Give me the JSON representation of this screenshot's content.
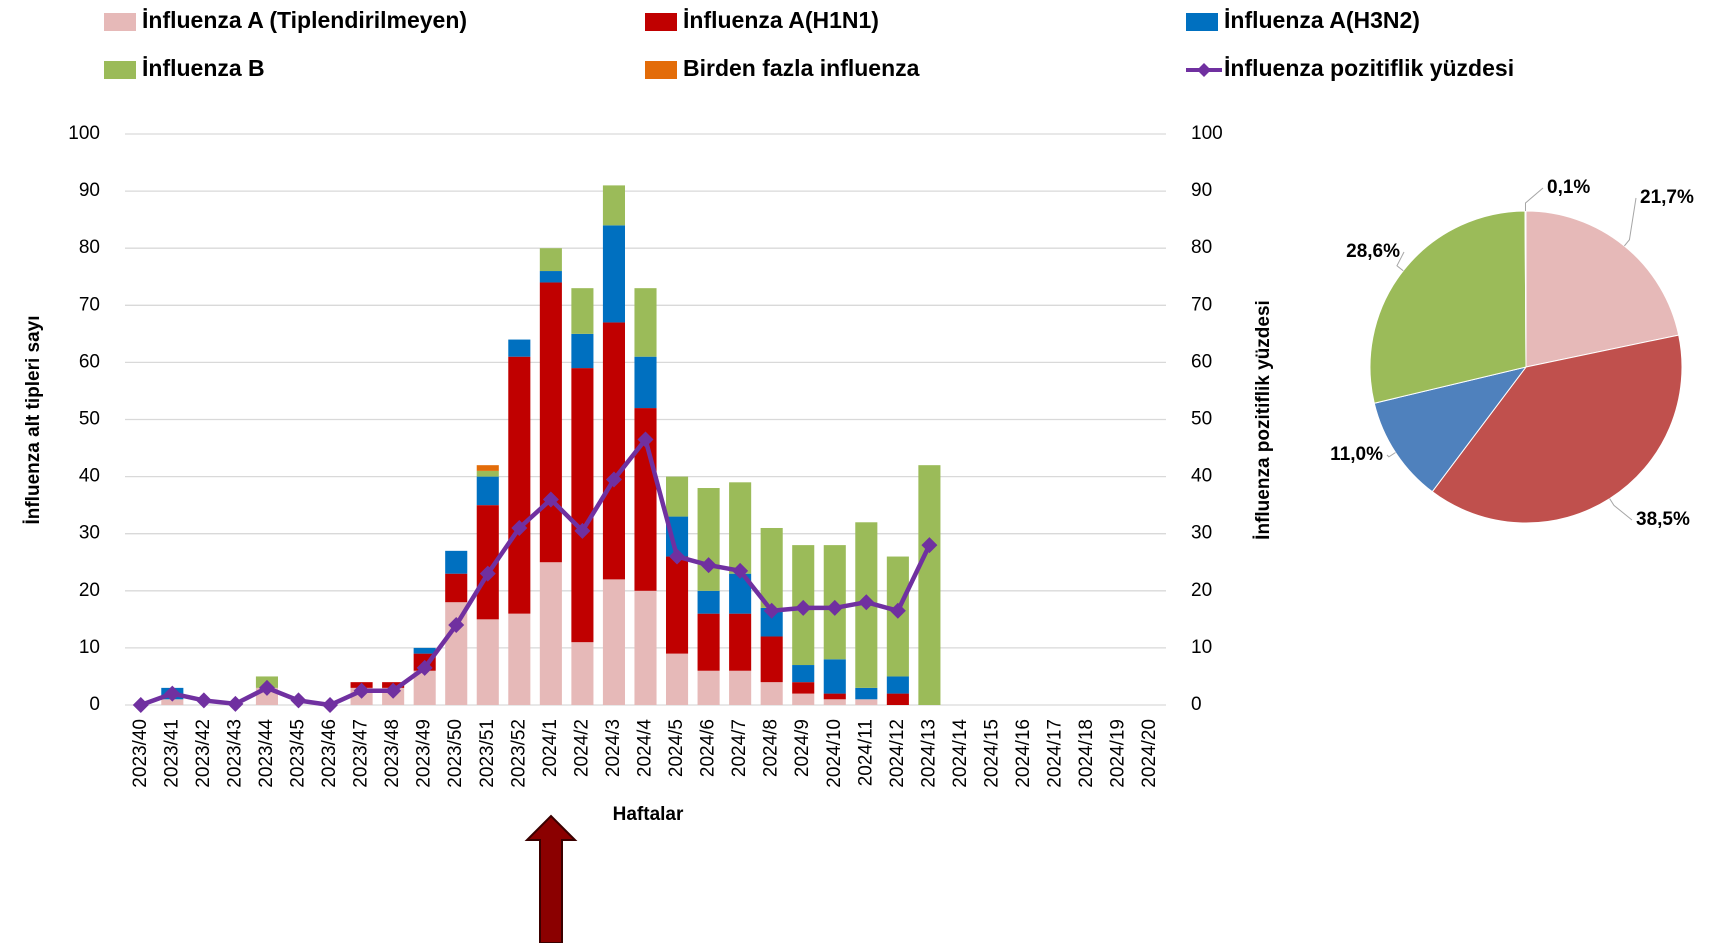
{
  "chart_data": [
    {
      "type": "bar",
      "stacked": true,
      "x_label": "Haftalar",
      "y_label": "İnfluenza alt tipleri sayı",
      "y2_label": "İnfluenza pozitiflik yüzdesi",
      "categories": [
        "2023/40",
        "2023/41",
        "2023/42",
        "2023/43",
        "2023/44",
        "2023/45",
        "2023/46",
        "2023/47",
        "2023/48",
        "2023/49",
        "2023/50",
        "2023/51",
        "2023/52",
        "2024/1",
        "2024/2",
        "2024/3",
        "2024/4",
        "2024/5",
        "2024/6",
        "2024/7",
        "2024/8",
        "2024/9",
        "2024/10",
        "2024/11",
        "2024/12",
        "2024/13",
        "2024/14",
        "2024/15",
        "2024/16",
        "2024/17",
        "2024/18",
        "2024/19",
        "2024/20"
      ],
      "ylim": [
        0,
        100
      ],
      "yticks": [
        0,
        10,
        20,
        30,
        40,
        50,
        60,
        70,
        80,
        90,
        100
      ],
      "y2lim": [
        0,
        100
      ],
      "y2ticks": [
        0,
        10,
        20,
        30,
        40,
        50,
        60,
        70,
        80,
        90,
        100
      ],
      "grid": true,
      "legend": "top",
      "series": [
        {
          "name": "İnfluenza A (Tiplendirilmeyen)",
          "color": "#e6b9b8",
          "values": [
            0,
            1,
            0,
            0,
            3,
            0,
            0,
            3,
            3,
            6,
            18,
            15,
            16,
            25,
            11,
            22,
            20,
            9,
            6,
            6,
            4,
            2,
            1,
            1,
            0,
            0,
            null,
            null,
            null,
            null,
            null,
            null,
            null
          ]
        },
        {
          "name": "İnfluenza A(H1N1)",
          "color": "#c00000",
          "values": [
            0,
            0,
            0,
            0,
            0,
            0,
            0,
            1,
            1,
            3,
            5,
            20,
            45,
            49,
            48,
            45,
            32,
            17,
            10,
            10,
            8,
            2,
            1,
            0,
            2,
            0,
            null,
            null,
            null,
            null,
            null,
            null,
            null
          ]
        },
        {
          "name": "İnfluenza A(H3N2)",
          "color": "#0070c0",
          "values": [
            0,
            2,
            0,
            0,
            0,
            0,
            0,
            0,
            0,
            1,
            4,
            5,
            3,
            2,
            6,
            17,
            9,
            7,
            4,
            7,
            5,
            3,
            6,
            2,
            3,
            0,
            null,
            null,
            null,
            null,
            null,
            null,
            null
          ]
        },
        {
          "name": "İnfluenza B",
          "color": "#9bbb59",
          "values": [
            0,
            0,
            0,
            0,
            2,
            0,
            0,
            0,
            0,
            0,
            0,
            1,
            0,
            4,
            8,
            7,
            12,
            7,
            18,
            16,
            14,
            21,
            20,
            29,
            21,
            42,
            null,
            null,
            null,
            null,
            null,
            null,
            null
          ]
        },
        {
          "name": "Birden fazla influenza",
          "color": "#e36c09",
          "values": [
            0,
            0,
            0,
            0,
            0,
            0,
            0,
            0,
            0,
            0,
            0,
            1,
            0,
            0,
            0,
            0,
            0,
            0,
            0,
            0,
            0,
            0,
            0,
            0,
            0,
            0,
            null,
            null,
            null,
            null,
            null,
            null,
            null
          ]
        },
        {
          "name": "İnfluenza pozitiflik yüzdesi",
          "color": "#7030a0",
          "type": "line",
          "axis": "y2",
          "values": [
            0,
            2,
            0.8,
            0.2,
            3,
            0.8,
            0,
            2.5,
            2.5,
            6.5,
            14,
            23,
            31,
            36,
            30.5,
            39.5,
            46.5,
            26,
            24.5,
            23.5,
            16.5,
            17,
            17,
            18,
            16.5,
            28,
            null,
            null,
            null,
            null,
            null,
            null,
            null
          ]
        }
      ]
    },
    {
      "type": "pie",
      "values": [
        21.7,
        38.5,
        11.0,
        28.6,
        0.1
      ],
      "value_labels": [
        "21,7%",
        "38,5%",
        "11,0%",
        "28,6%",
        "0,1%"
      ],
      "colors": [
        "#e6b9b8",
        "#c0504d",
        "#4f81bd",
        "#9bbb59",
        "#f79646"
      ]
    }
  ]
}
